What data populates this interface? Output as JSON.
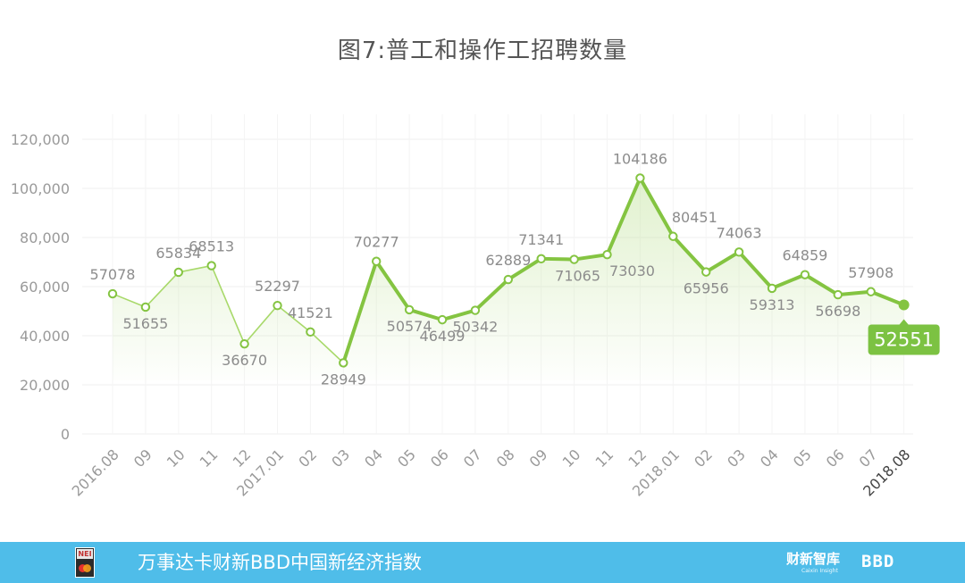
{
  "title": "图7:普工和操作工招聘数量",
  "footer": {
    "index_name": "万事达卡财新BBD中国新经济指数",
    "logo_text": "NEI",
    "brand_caixin": "财新智库",
    "brand_caixin_sub": "Caixin Insight",
    "brand_bbd": "BBD"
  },
  "chart_data": {
    "type": "line",
    "categories": [
      "2016.08",
      "09",
      "10",
      "11",
      "12",
      "2017.01",
      "02",
      "03",
      "04",
      "05",
      "06",
      "07",
      "08",
      "09",
      "10",
      "11",
      "12",
      "2018.01",
      "02",
      "03",
      "04",
      "05",
      "06",
      "07",
      "2018.08"
    ],
    "series": [
      {
        "values": [
          57078,
          51655,
          65834,
          68513,
          36670,
          52297,
          41521,
          28949,
          70277,
          50574,
          46499,
          50342,
          62889,
          71341,
          71065,
          73030,
          104186,
          80451,
          65956,
          74063,
          59313,
          64859,
          56698,
          57908,
          52551
        ]
      }
    ],
    "data_labels": [
      "57078",
      "51655",
      "65834",
      "68513",
      "36670",
      "52297",
      "41521",
      "28949",
      "70277",
      "50574",
      "46499",
      "50342",
      "62889",
      "71341",
      "71065",
      "73030",
      "104186",
      "80451",
      "65956",
      "74063",
      "59313",
      "64859",
      "56698",
      "57908",
      "52551"
    ],
    "y_ticks": [
      "0",
      "20,000",
      "40,000",
      "60,000",
      "80,000",
      "100,000",
      "120,000"
    ],
    "ylim": [
      0,
      120000
    ],
    "grid": true,
    "highlight_last": true,
    "colors": {
      "line_light": "#a8d96a",
      "line_bold": "#84c441",
      "highlight_box": "#7cc242",
      "label": "#8c8c8c",
      "axis_label": "#9a9a9a",
      "last_tick_label": "#444444"
    }
  }
}
